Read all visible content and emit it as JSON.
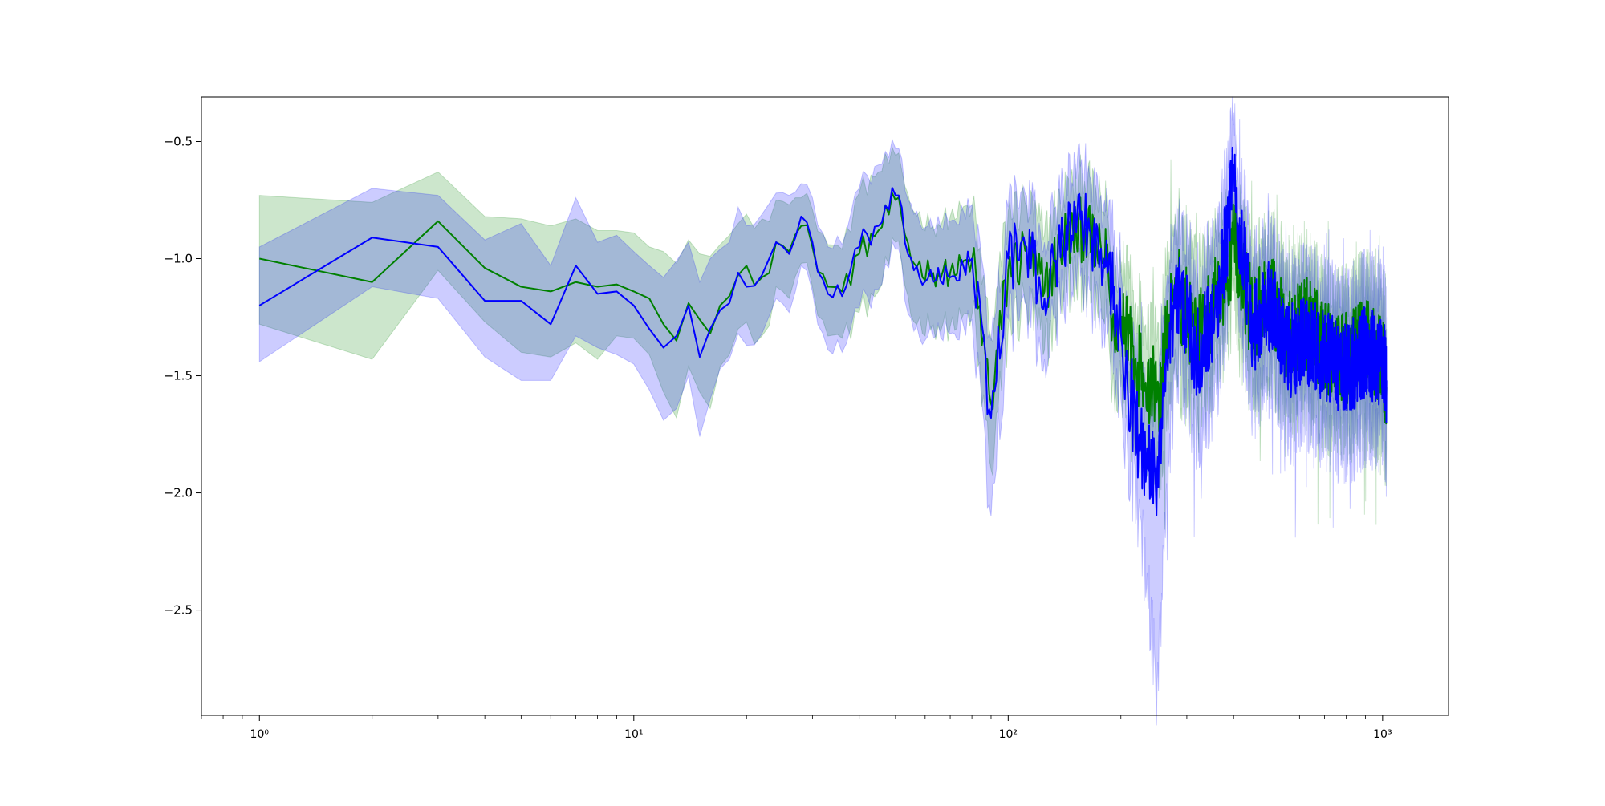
{
  "chart_data": {
    "type": "line",
    "title": "",
    "xlabel": "",
    "ylabel": "",
    "xscale": "log",
    "xlim": [
      0.7,
      1500
    ],
    "ylim": [
      -2.95,
      -0.31
    ],
    "x_ticks": [
      {
        "value": 1,
        "label": "10⁰"
      },
      {
        "value": 10,
        "label": "10¹"
      },
      {
        "value": 100,
        "label": "10²"
      },
      {
        "value": 1000,
        "label": "10³"
      }
    ],
    "y_ticks": [
      {
        "value": -0.5,
        "label": "−0.5"
      },
      {
        "value": -1.0,
        "label": "−1.0"
      },
      {
        "value": -1.5,
        "label": "−1.5"
      },
      {
        "value": -2.0,
        "label": "−2.0"
      },
      {
        "value": -2.5,
        "label": "−2.5"
      }
    ],
    "grid": false,
    "legend": "none",
    "x_range": [
      1,
      1024
    ],
    "series": [
      {
        "color": "#008000",
        "band_color": "#008000",
        "band_opacity": 0.2,
        "anchors": {
          "x": [
            1,
            2,
            3,
            4,
            5,
            6,
            7,
            8,
            9,
            10,
            11,
            12,
            13,
            14,
            15,
            16,
            17,
            18,
            19,
            20,
            22,
            24,
            26,
            28,
            30,
            33,
            36,
            40,
            45,
            50,
            56,
            63,
            70,
            80,
            90,
            100,
            112,
            125,
            140,
            160,
            180,
            200,
            225,
            250,
            280,
            320,
            360,
            400,
            450,
            500,
            560,
            630,
            700,
            800,
            900,
            1000,
            1024
          ],
          "mean": [
            -1.0,
            -1.1,
            -0.84,
            -1.04,
            -1.12,
            -1.14,
            -1.1,
            -1.12,
            -1.11,
            -1.14,
            -1.17,
            -1.28,
            -1.35,
            -1.19,
            -1.26,
            -1.32,
            -1.2,
            -1.16,
            -1.07,
            -1.03,
            -1.08,
            -0.93,
            -0.97,
            -0.86,
            -0.95,
            -1.12,
            -1.14,
            -0.98,
            -0.88,
            -0.75,
            -1.02,
            -1.06,
            -1.06,
            -1.01,
            -1.62,
            -1.05,
            -0.97,
            -1.14,
            -0.92,
            -0.87,
            -1.02,
            -1.3,
            -1.47,
            -1.6,
            -1.12,
            -1.35,
            -1.18,
            -0.94,
            -1.26,
            -1.16,
            -1.33,
            -1.28,
            -1.38,
            -1.43,
            -1.36,
            -1.42,
            -1.55
          ],
          "upper": [
            -0.73,
            -0.76,
            -0.63,
            -0.82,
            -0.83,
            -0.86,
            -0.83,
            -0.88,
            -0.88,
            -0.89,
            -0.95,
            -0.97,
            -1.02,
            -0.92,
            -0.98,
            -0.99,
            -0.94,
            -0.9,
            -0.85,
            -0.81,
            -0.83,
            -0.75,
            -0.77,
            -0.74,
            -0.79,
            -0.94,
            -0.96,
            -0.72,
            -0.63,
            -0.56,
            -0.8,
            -0.86,
            -0.82,
            -0.78,
            -1.34,
            -0.8,
            -0.77,
            -0.9,
            -0.73,
            -0.67,
            -0.8,
            -1.06,
            -1.23,
            -1.34,
            -0.84,
            -1.06,
            -0.95,
            -0.77,
            -1.02,
            -0.94,
            -1.09,
            -1.05,
            -1.16,
            -1.2,
            -1.12,
            -1.18,
            -1.3
          ],
          "lower": [
            -1.28,
            -1.43,
            -1.05,
            -1.27,
            -1.4,
            -1.42,
            -1.36,
            -1.43,
            -1.33,
            -1.34,
            -1.41,
            -1.57,
            -1.68,
            -1.46,
            -1.57,
            -1.64,
            -1.46,
            -1.41,
            -1.3,
            -1.27,
            -1.33,
            -1.12,
            -1.17,
            -1.02,
            -1.12,
            -1.33,
            -1.34,
            -1.23,
            -1.14,
            -0.93,
            -1.27,
            -1.28,
            -1.29,
            -1.24,
            -1.9,
            -1.3,
            -1.19,
            -1.39,
            -1.12,
            -1.07,
            -1.26,
            -1.55,
            -1.74,
            -1.86,
            -1.43,
            -1.63,
            -1.43,
            -1.14,
            -1.51,
            -1.4,
            -1.59,
            -1.52,
            -1.62,
            -1.67,
            -1.61,
            -1.67,
            -1.8
          ]
        }
      },
      {
        "color": "#0000ff",
        "band_color": "#0000ff",
        "band_opacity": 0.2,
        "anchors": {
          "x": [
            1,
            2,
            3,
            4,
            5,
            6,
            7,
            8,
            9,
            10,
            11,
            12,
            13,
            14,
            15,
            16,
            17,
            18,
            19,
            20,
            22,
            24,
            26,
            28,
            30,
            33,
            36,
            40,
            45,
            50,
            56,
            63,
            70,
            80,
            90,
            100,
            112,
            125,
            140,
            160,
            180,
            200,
            225,
            250,
            280,
            320,
            360,
            400,
            450,
            500,
            560,
            630,
            700,
            800,
            900,
            1000,
            1024
          ],
          "mean": [
            -1.2,
            -0.91,
            -0.95,
            -1.18,
            -1.18,
            -1.28,
            -1.03,
            -1.15,
            -1.14,
            -1.2,
            -1.3,
            -1.38,
            -1.33,
            -1.2,
            -1.42,
            -1.3,
            -1.22,
            -1.19,
            -1.06,
            -1.12,
            -1.07,
            -0.93,
            -0.98,
            -0.82,
            -0.93,
            -1.15,
            -1.16,
            -0.95,
            -0.86,
            -0.73,
            -1.05,
            -1.1,
            -1.08,
            -1.0,
            -1.68,
            -1.0,
            -0.95,
            -1.17,
            -0.9,
            -0.85,
            -1.0,
            -1.32,
            -1.82,
            -1.9,
            -1.1,
            -1.4,
            -1.25,
            -0.66,
            -1.3,
            -1.2,
            -1.4,
            -1.35,
            -1.42,
            -1.48,
            -1.4,
            -1.45,
            -1.52
          ],
          "upper": [
            -0.95,
            -0.7,
            -0.73,
            -0.92,
            -0.85,
            -1.03,
            -0.74,
            -0.93,
            -0.9,
            -0.97,
            -1.03,
            -1.08,
            -1.01,
            -0.93,
            -1.1,
            -1.0,
            -0.96,
            -0.93,
            -0.78,
            -0.86,
            -0.81,
            -0.72,
            -0.73,
            -0.68,
            -0.74,
            -0.95,
            -0.94,
            -0.7,
            -0.6,
            -0.53,
            -0.81,
            -0.88,
            -0.84,
            -0.77,
            -1.35,
            -0.78,
            -0.73,
            -0.93,
            -0.68,
            -0.62,
            -0.77,
            -1.06,
            -1.55,
            -1.58,
            -0.84,
            -1.1,
            -0.95,
            -0.43,
            -1.05,
            -0.95,
            -1.15,
            -1.09,
            -1.16,
            -1.22,
            -1.13,
            -1.17,
            -1.25
          ],
          "lower": [
            -1.44,
            -1.12,
            -1.17,
            -1.42,
            -1.52,
            -1.52,
            -1.33,
            -1.38,
            -1.41,
            -1.45,
            -1.56,
            -1.69,
            -1.64,
            -1.5,
            -1.76,
            -1.6,
            -1.47,
            -1.43,
            -1.32,
            -1.37,
            -1.32,
            -1.17,
            -1.23,
            -1.03,
            -1.14,
            -1.39,
            -1.4,
            -1.21,
            -1.13,
            -0.96,
            -1.31,
            -1.34,
            -1.32,
            -1.26,
            -2.1,
            -1.26,
            -1.2,
            -1.43,
            -1.13,
            -1.1,
            -1.26,
            -1.6,
            -2.1,
            -2.8,
            -1.38,
            -1.7,
            -1.58,
            -0.9,
            -1.58,
            -1.47,
            -1.67,
            -1.62,
            -1.7,
            -1.78,
            -1.68,
            -1.72,
            -1.82
          ]
        }
      }
    ]
  }
}
